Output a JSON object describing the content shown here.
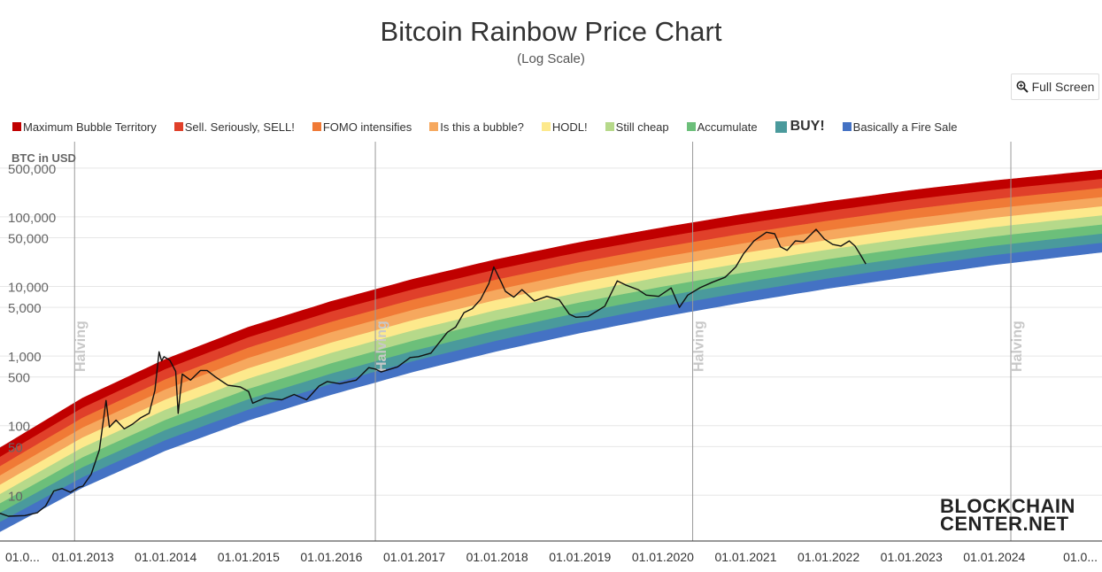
{
  "title": "Bitcoin Rainbow Price Chart",
  "subtitle": "(Log Scale)",
  "full_screen_label": "Full Screen",
  "logo": {
    "line1": "BLOCKCHAIN",
    "line2": "CENTER.NET"
  },
  "legend": [
    {
      "label": "Maximum Bubble Territory",
      "color": "#c00000"
    },
    {
      "label": "Sell. Seriously, SELL!",
      "color": "#e0402a"
    },
    {
      "label": "FOMO intensifies",
      "color": "#f07a36"
    },
    {
      "label": "Is this a bubble?",
      "color": "#f6a85e"
    },
    {
      "label": "HODL!",
      "color": "#fde98c"
    },
    {
      "label": "Still cheap",
      "color": "#b6d98a"
    },
    {
      "label": "Accumulate",
      "color": "#6cbf7a"
    },
    {
      "label": "BUY!",
      "color": "#4a9a9c"
    },
    {
      "label": "Basically a Fire Sale",
      "color": "#4472c4"
    }
  ],
  "chart_data": {
    "type": "line",
    "title": "Bitcoin Rainbow Price Chart",
    "subtitle": "(Log Scale)",
    "ylabel": "BTC in USD",
    "y_scale": "log",
    "y_ticks": [
      "500,000",
      "100,000",
      "50,000",
      "10,000",
      "5,000",
      "1,000",
      "500",
      "100",
      "50",
      "10"
    ],
    "y_tick_values": [
      500000,
      100000,
      50000,
      10000,
      5000,
      1000,
      500,
      100,
      50,
      10
    ],
    "x_ticks": [
      "01.0...",
      "01.01.2013",
      "01.01.2014",
      "01.01.2015",
      "01.01.2016",
      "01.01.2017",
      "01.01.2018",
      "01.01.2019",
      "01.01.2020",
      "01.01.2021",
      "01.01.2022",
      "01.01.2023",
      "01.01.2024",
      "01.0..."
    ],
    "x_tick_years": [
      2012,
      2013,
      2014,
      2015,
      2016,
      2017,
      2018,
      2019,
      2020,
      2021,
      2022,
      2023,
      2024,
      2025
    ],
    "xlim": [
      2012.0,
      2025.3
    ],
    "ylim": [
      2.2,
      1200000
    ],
    "halvings": [
      {
        "label": "Halving",
        "year": 2012.9
      },
      {
        "label": "Halving",
        "year": 2016.53
      },
      {
        "label": "Halving",
        "year": 2020.36
      },
      {
        "label": "Halving",
        "year": 2024.2
      }
    ],
    "bands": {
      "lower_edge": [
        [
          2012.0,
          3.0
        ],
        [
          2013.0,
          13
        ],
        [
          2014.0,
          44
        ],
        [
          2015.0,
          120
        ],
        [
          2016.0,
          280
        ],
        [
          2017.0,
          600
        ],
        [
          2018.0,
          1180
        ],
        [
          2019.0,
          2150
        ],
        [
          2020.0,
          3700
        ],
        [
          2021.0,
          6000
        ],
        [
          2022.0,
          9400
        ],
        [
          2023.0,
          14000
        ],
        [
          2024.0,
          20500
        ],
        [
          2025.3,
          31000
        ]
      ],
      "upper_edge": [
        [
          2012.0,
          48
        ],
        [
          2013.0,
          250
        ],
        [
          2014.0,
          900
        ],
        [
          2015.0,
          2600
        ],
        [
          2016.0,
          6100
        ],
        [
          2017.0,
          12800
        ],
        [
          2018.0,
          24500
        ],
        [
          2019.0,
          43000
        ],
        [
          2020.0,
          70000
        ],
        [
          2021.0,
          110000
        ],
        [
          2022.0,
          165000
        ],
        [
          2023.0,
          240000
        ],
        [
          2024.0,
          330000
        ],
        [
          2025.3,
          470000
        ]
      ]
    },
    "series": [
      {
        "name": "BTC in USD",
        "color": "#111111",
        "points": [
          [
            2012.0,
            5.5
          ],
          [
            2012.1,
            5.0
          ],
          [
            2012.3,
            5.1
          ],
          [
            2012.45,
            5.6
          ],
          [
            2012.55,
            7.0
          ],
          [
            2012.65,
            11.5
          ],
          [
            2012.75,
            12.5
          ],
          [
            2012.85,
            11.0
          ],
          [
            2012.95,
            13.0
          ],
          [
            2013.0,
            13.5
          ],
          [
            2013.1,
            20
          ],
          [
            2013.2,
            45
          ],
          [
            2013.28,
            230
          ],
          [
            2013.32,
            95
          ],
          [
            2013.4,
            120
          ],
          [
            2013.5,
            90
          ],
          [
            2013.6,
            105
          ],
          [
            2013.7,
            130
          ],
          [
            2013.8,
            150
          ],
          [
            2013.87,
            320
          ],
          [
            2013.92,
            1150
          ],
          [
            2013.95,
            850
          ],
          [
            2013.98,
            980
          ],
          [
            2014.05,
            870
          ],
          [
            2014.12,
            600
          ],
          [
            2014.15,
            150
          ],
          [
            2014.2,
            550
          ],
          [
            2014.3,
            450
          ],
          [
            2014.42,
            620
          ],
          [
            2014.5,
            620
          ],
          [
            2014.6,
            500
          ],
          [
            2014.75,
            380
          ],
          [
            2014.9,
            360
          ],
          [
            2015.0,
            310
          ],
          [
            2015.05,
            210
          ],
          [
            2015.2,
            250
          ],
          [
            2015.4,
            235
          ],
          [
            2015.55,
            280
          ],
          [
            2015.7,
            235
          ],
          [
            2015.85,
            370
          ],
          [
            2015.95,
            430
          ],
          [
            2016.1,
            400
          ],
          [
            2016.3,
            450
          ],
          [
            2016.45,
            680
          ],
          [
            2016.53,
            650
          ],
          [
            2016.6,
            590
          ],
          [
            2016.8,
            700
          ],
          [
            2016.95,
            950
          ],
          [
            2017.05,
            980
          ],
          [
            2017.2,
            1100
          ],
          [
            2017.4,
            2200
          ],
          [
            2017.5,
            2600
          ],
          [
            2017.6,
            4200
          ],
          [
            2017.7,
            4800
          ],
          [
            2017.8,
            6500
          ],
          [
            2017.9,
            11000
          ],
          [
            2017.96,
            19000
          ],
          [
            2018.05,
            11500
          ],
          [
            2018.1,
            8500
          ],
          [
            2018.2,
            7000
          ],
          [
            2018.3,
            9000
          ],
          [
            2018.45,
            6200
          ],
          [
            2018.6,
            7200
          ],
          [
            2018.75,
            6400
          ],
          [
            2018.87,
            4000
          ],
          [
            2018.95,
            3600
          ],
          [
            2019.1,
            3700
          ],
          [
            2019.3,
            5200
          ],
          [
            2019.45,
            12000
          ],
          [
            2019.55,
            10500
          ],
          [
            2019.7,
            9000
          ],
          [
            2019.8,
            7500
          ],
          [
            2019.95,
            7200
          ],
          [
            2020.1,
            9500
          ],
          [
            2020.2,
            5000
          ],
          [
            2020.3,
            7500
          ],
          [
            2020.45,
            9600
          ],
          [
            2020.6,
            11500
          ],
          [
            2020.75,
            13500
          ],
          [
            2020.88,
            19000
          ],
          [
            2020.97,
            29000
          ],
          [
            2021.1,
            45000
          ],
          [
            2021.25,
            60000
          ],
          [
            2021.35,
            57000
          ],
          [
            2021.42,
            37000
          ],
          [
            2021.5,
            33000
          ],
          [
            2021.6,
            45000
          ],
          [
            2021.7,
            44000
          ],
          [
            2021.85,
            66000
          ],
          [
            2021.95,
            48000
          ],
          [
            2022.05,
            40000
          ],
          [
            2022.15,
            38000
          ],
          [
            2022.25,
            45000
          ],
          [
            2022.32,
            38000
          ],
          [
            2022.38,
            29000
          ],
          [
            2022.45,
            21000
          ]
        ]
      }
    ],
    "grid": true
  }
}
